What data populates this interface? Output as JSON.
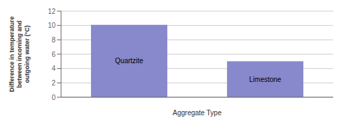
{
  "chart_data": {
    "type": "bar",
    "categories": [
      "Quartzite",
      "Limestone"
    ],
    "values": [
      10.1,
      5.0
    ],
    "color": "#8888cc",
    "ylabel": "Difference in temperature\nbetween incoming and\noutgoing water (°C)",
    "xlabel": "Aggregate Type",
    "ylim": [
      0,
      12
    ],
    "yticks": [
      0,
      2,
      4,
      6,
      8,
      10,
      12
    ],
    "grid": true,
    "tick_labels": "y"
  }
}
